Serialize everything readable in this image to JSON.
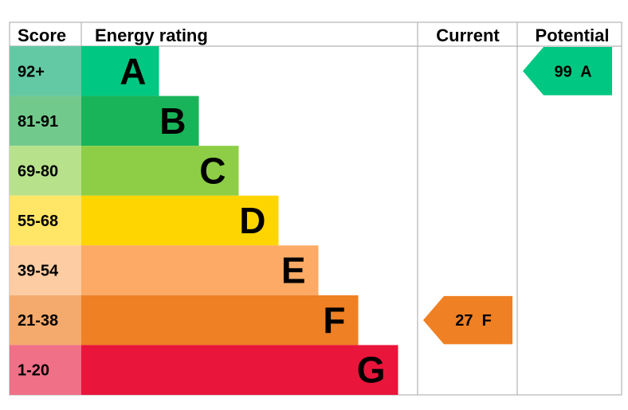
{
  "chart_data": {
    "type": "bar",
    "title": "",
    "headers": {
      "score": "Score",
      "energy_rating": "Energy rating",
      "current": "Current",
      "potential": "Potential"
    },
    "bands": [
      {
        "letter": "A",
        "range": "92+",
        "color": "#00c781",
        "score_color": "#63c9a4",
        "value": 1
      },
      {
        "letter": "B",
        "range": "81-91",
        "color": "#19b459",
        "score_color": "#72c98c",
        "value": 2
      },
      {
        "letter": "C",
        "range": "69-80",
        "color": "#8dce46",
        "score_color": "#b8e18c",
        "value": 3
      },
      {
        "letter": "D",
        "range": "55-68",
        "color": "#ffd500",
        "score_color": "#ffe666",
        "value": 4
      },
      {
        "letter": "E",
        "range": "39-54",
        "color": "#fcaa65",
        "score_color": "#fdcca2",
        "value": 5
      },
      {
        "letter": "F",
        "range": "21-38",
        "color": "#ef8023",
        "score_color": "#f4aa6c",
        "value": 6
      },
      {
        "letter": "G",
        "range": "1-20",
        "color": "#e9153b",
        "score_color": "#f07087",
        "value": 7
      }
    ],
    "current": {
      "score": 27,
      "band": "F",
      "label": "27  F",
      "color": "#ef8023"
    },
    "potential": {
      "score": 99,
      "band": "A",
      "label": "99  A",
      "color": "#00c781"
    },
    "grid": false
  }
}
